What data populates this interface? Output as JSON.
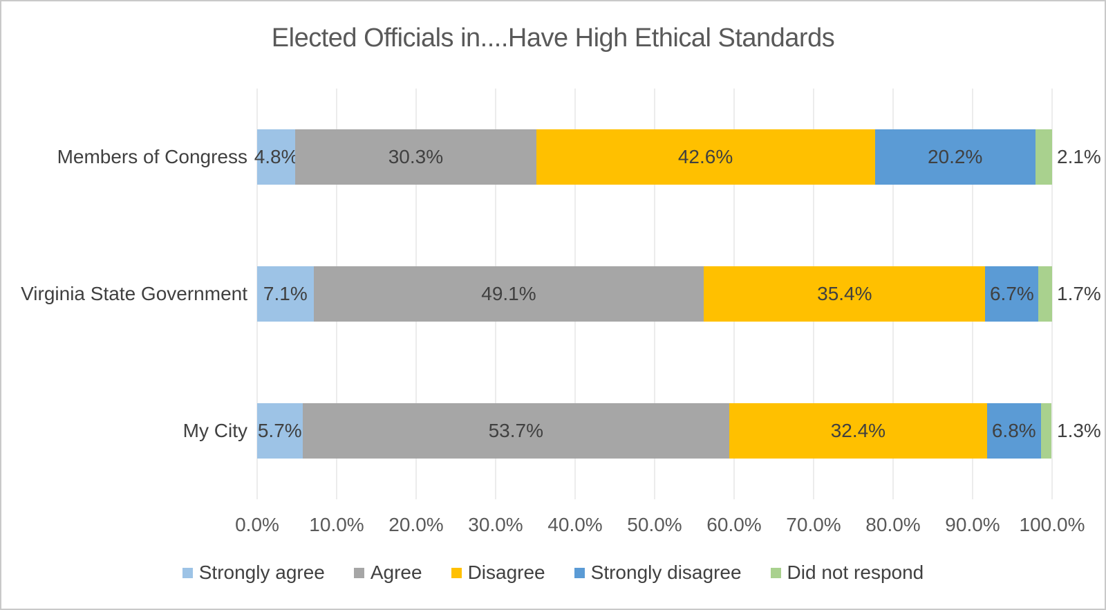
{
  "page": {
    "background": "#ffffff",
    "border_color": "#c9c9c9"
  },
  "chart_data": {
    "type": "bar",
    "orientation": "horizontal",
    "stacked": true,
    "title": "Elected Officials in....Have High Ethical Standards",
    "categories": [
      "Members of Congress",
      "Virginia State Government",
      "My City"
    ],
    "series": [
      {
        "name": "Strongly agree",
        "color": "#9DC3E6",
        "values": [
          4.8,
          7.1,
          5.7
        ],
        "labels": [
          "4.8%",
          "7.1%",
          "5.7%"
        ]
      },
      {
        "name": "Agree",
        "color": "#A6A6A6",
        "values": [
          30.3,
          49.1,
          53.7
        ],
        "labels": [
          "30.3%",
          "49.1%",
          "53.7%"
        ]
      },
      {
        "name": "Disagree",
        "color": "#FFC000",
        "values": [
          42.6,
          35.4,
          32.4
        ],
        "labels": [
          "42.6%",
          "35.4%",
          "32.4%"
        ]
      },
      {
        "name": "Strongly disagree",
        "color": "#5B9BD5",
        "values": [
          20.2,
          6.7,
          6.8
        ],
        "labels": [
          "20.2%",
          "6.7%",
          "6.8%"
        ]
      },
      {
        "name": "Did not respond",
        "color": "#A9D18E",
        "values": [
          2.1,
          1.7,
          1.3
        ],
        "labels": [
          "2.1%",
          "1.7%",
          "1.3%"
        ],
        "labels_outside": true
      }
    ],
    "x_axis": {
      "min": 0,
      "max": 100,
      "step": 10,
      "tick_labels": [
        "0.0%",
        "10.0%",
        "20.0%",
        "30.0%",
        "40.0%",
        "50.0%",
        "60.0%",
        "70.0%",
        "80.0%",
        "90.0%",
        "100.0%"
      ]
    },
    "legend": {
      "position": "bottom",
      "entries": [
        "Strongly agree",
        "Agree",
        "Disagree",
        "Strongly disagree",
        "Did not respond"
      ]
    },
    "gridlines": {
      "vertical": true,
      "color": "#D9D9D9"
    },
    "colors": {
      "title_text": "#595959",
      "label_text": "#404040",
      "axis_text": "#595959"
    }
  }
}
